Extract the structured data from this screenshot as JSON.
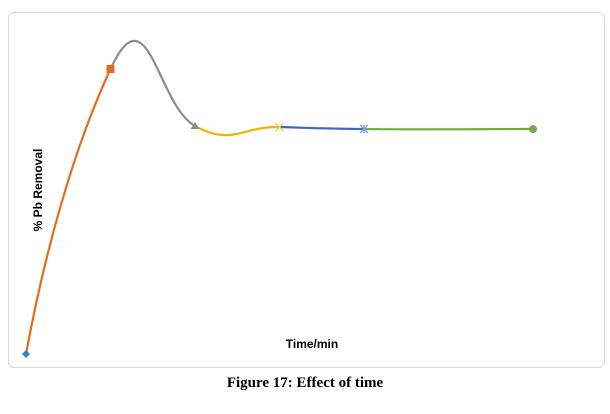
{
  "chart_data": {
    "type": "line",
    "title": "",
    "xlabel": "Time/min",
    "ylabel": "% Pb Removal",
    "x": [
      0,
      1,
      2,
      3,
      4,
      6
    ],
    "y": [
      0,
      85,
      68,
      67.7,
      67.1,
      67.1
    ],
    "ylim": [
      0,
      100
    ],
    "grid": false,
    "smoothed": true,
    "segments": [
      {
        "from": 0,
        "to": 1,
        "color": "#e36c1f"
      },
      {
        "from": 1,
        "to": 2,
        "color": "#8c8c8c"
      },
      {
        "from": 2,
        "to": 3,
        "color": "#f5b400"
      },
      {
        "from": 3,
        "to": 4,
        "color": "#3a66c4"
      },
      {
        "from": 4,
        "to": 5,
        "color": "#70ad47"
      }
    ],
    "markers": [
      {
        "shape": "diamond",
        "color": "#3f7fbf"
      },
      {
        "shape": "square",
        "color": "#e36c1f"
      },
      {
        "shape": "triangle",
        "color": "#8c8c8c"
      },
      {
        "shape": "x",
        "color": "#f5c842"
      },
      {
        "shape": "asterisk",
        "color": "#7aa0e0"
      },
      {
        "shape": "circle",
        "color": "#70ad47"
      }
    ]
  },
  "caption": "Figure 17: Effect of time"
}
